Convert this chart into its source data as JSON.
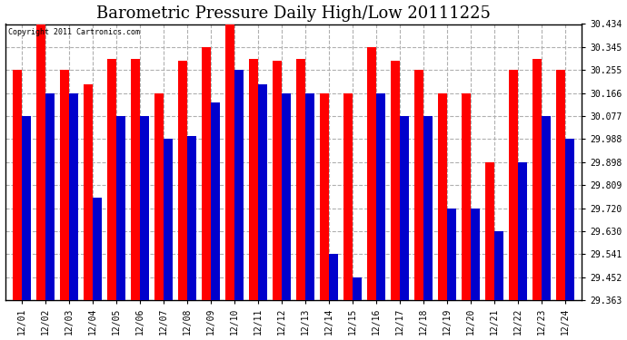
{
  "title": "Barometric Pressure Daily High/Low 20111225",
  "copyright": "Copyright 2011 Cartronics.com",
  "dates": [
    "12/01",
    "12/02",
    "12/03",
    "12/04",
    "12/05",
    "12/06",
    "12/07",
    "12/08",
    "12/09",
    "12/10",
    "12/11",
    "12/12",
    "12/13",
    "12/14",
    "12/15",
    "12/16",
    "12/17",
    "12/18",
    "12/19",
    "12/20",
    "12/21",
    "12/22",
    "12/23",
    "12/24"
  ],
  "highs": [
    30.255,
    30.434,
    30.255,
    30.2,
    30.3,
    30.3,
    30.166,
    30.29,
    30.345,
    30.434,
    30.3,
    30.29,
    30.3,
    30.166,
    30.166,
    30.345,
    30.29,
    30.255,
    30.166,
    30.166,
    29.898,
    30.255,
    30.3,
    30.255
  ],
  "lows": [
    30.077,
    30.166,
    30.166,
    29.76,
    30.077,
    30.077,
    29.988,
    30.0,
    30.13,
    30.255,
    30.2,
    30.166,
    30.166,
    29.541,
    29.452,
    30.166,
    30.077,
    30.077,
    29.72,
    29.72,
    29.63,
    29.898,
    30.077,
    29.988
  ],
  "high_color": "#ff0000",
  "low_color": "#0000cc",
  "bg_color": "#ffffff",
  "grid_color": "#b0b0b0",
  "ymin": 29.363,
  "ymax": 30.434,
  "yticks": [
    29.363,
    29.452,
    29.541,
    29.63,
    29.72,
    29.809,
    29.898,
    29.988,
    30.077,
    30.166,
    30.255,
    30.345,
    30.434
  ],
  "title_fontsize": 13,
  "tick_fontsize": 7,
  "bar_width": 0.38
}
